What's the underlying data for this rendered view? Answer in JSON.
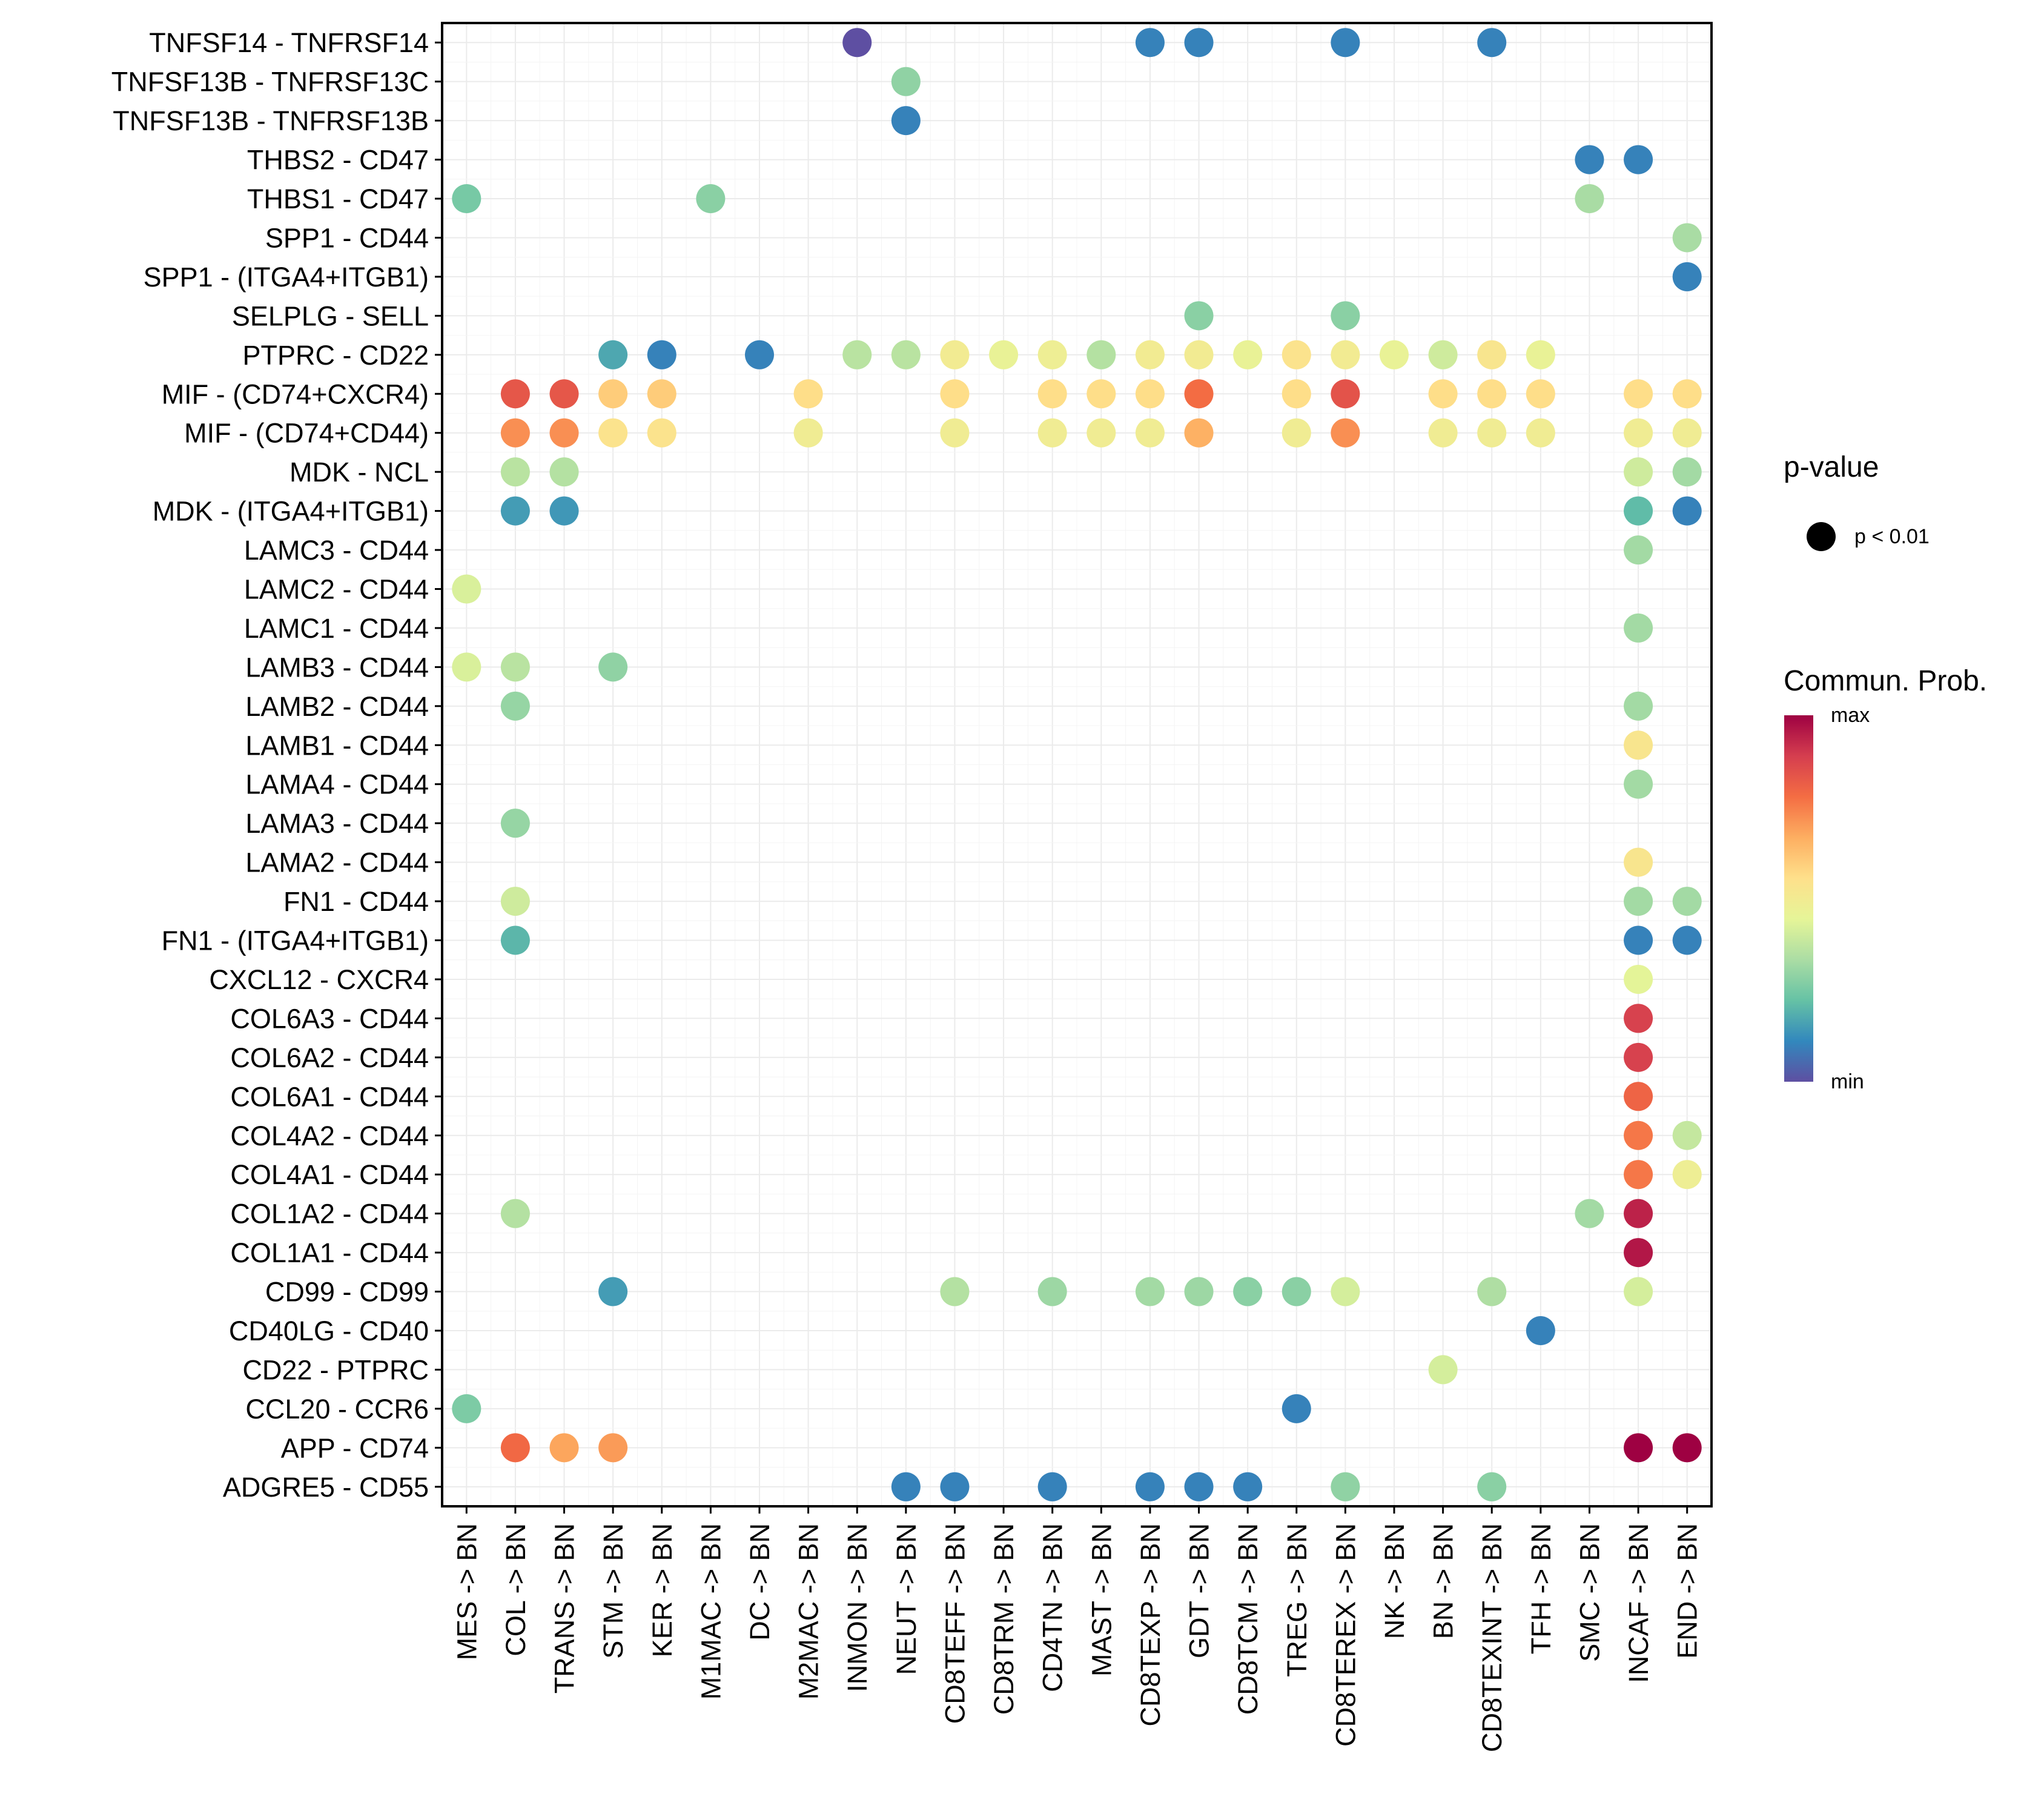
{
  "chart_data": {
    "type": "scatter",
    "subtype": "dot-plot",
    "title": "",
    "xlabel": "",
    "ylabel": "",
    "grid": true,
    "columns": [
      "MES -> BN",
      "COL -> BN",
      "TRANS -> BN",
      "STM -> BN",
      "KER -> BN",
      "M1MAC -> BN",
      "DC -> BN",
      "M2MAC -> BN",
      "INMON -> BN",
      "NEUT -> BN",
      "CD8TEFF -> BN",
      "CD8TRM -> BN",
      "CD4TN -> BN",
      "MAST -> BN",
      "CD8TEXP -> BN",
      "GDT -> BN",
      "CD8TCM -> BN",
      "TREG -> BN",
      "CD8TEREX -> BN",
      "NK -> BN",
      "BN -> BN",
      "CD8TEXINT -> BN",
      "TFH -> BN",
      "SMC -> BN",
      "INCAF -> BN",
      "END -> BN"
    ],
    "rows": [
      "TNFSF14 - TNFRSF14",
      "TNFSF13B - TNFRSF13C",
      "TNFSF13B - TNFRSF13B",
      "THBS2 - CD47",
      "THBS1 - CD47",
      "SPP1 - CD44",
      "SPP1 - (ITGA4+ITGB1)",
      "SELPLG - SELL",
      "PTPRC - CD22",
      "MIF - (CD74+CXCR4)",
      "MIF - (CD74+CD44)",
      "MDK - NCL",
      "MDK - (ITGA4+ITGB1)",
      "LAMC3 - CD44",
      "LAMC2 - CD44",
      "LAMC1 - CD44",
      "LAMB3 - CD44",
      "LAMB2 - CD44",
      "LAMB1 - CD44",
      "LAMA4 - CD44",
      "LAMA3 - CD44",
      "LAMA2 - CD44",
      "FN1 - CD44",
      "FN1 - (ITGA4+ITGB1)",
      "CXCL12 - CXCR4",
      "COL6A3 - CD44",
      "COL6A2 - CD44",
      "COL6A1 - CD44",
      "COL4A2 - CD44",
      "COL4A1 - CD44",
      "COL1A2 - CD44",
      "COL1A1 - CD44",
      "CD99 - CD99",
      "CD40LG - CD40",
      "CD22 - PTPRC",
      "CCL20 - CCR6",
      "APP - CD74",
      "ADGRE5 - CD55"
    ],
    "value_scale": "relative communication probability, 0 = min, 1 = max",
    "points": [
      {
        "row": "TNFSF14 - TNFRSF14",
        "col": "INMON -> BN",
        "value": 0.0
      },
      {
        "row": "TNFSF14 - TNFRSF14",
        "col": "CD8TEXP -> BN",
        "value": 0.1
      },
      {
        "row": "TNFSF14 - TNFRSF14",
        "col": "GDT -> BN",
        "value": 0.1
      },
      {
        "row": "TNFSF14 - TNFRSF14",
        "col": "CD8TEREX -> BN",
        "value": 0.1
      },
      {
        "row": "TNFSF14 - TNFRSF14",
        "col": "CD8TEXINT -> BN",
        "value": 0.1
      },
      {
        "row": "TNFSF13B - TNFRSF13C",
        "col": "NEUT -> BN",
        "value": 0.29
      },
      {
        "row": "TNFSF13B - TNFRSF13B",
        "col": "NEUT -> BN",
        "value": 0.1
      },
      {
        "row": "THBS2 - CD47",
        "col": "SMC -> BN",
        "value": 0.1
      },
      {
        "row": "THBS2 - CD47",
        "col": "INCAF -> BN",
        "value": 0.1
      },
      {
        "row": "THBS1 - CD47",
        "col": "MES -> BN",
        "value": 0.25
      },
      {
        "row": "THBS1 - CD47",
        "col": "M1MAC -> BN",
        "value": 0.28
      },
      {
        "row": "THBS1 - CD47",
        "col": "SMC -> BN",
        "value": 0.33
      },
      {
        "row": "SPP1 - CD44",
        "col": "END -> BN",
        "value": 0.33
      },
      {
        "row": "SPP1 - (ITGA4+ITGB1)",
        "col": "END -> BN",
        "value": 0.1
      },
      {
        "row": "SELPLG - SELL",
        "col": "GDT -> BN",
        "value": 0.28
      },
      {
        "row": "SELPLG - SELL",
        "col": "CD8TEREX -> BN",
        "value": 0.28
      },
      {
        "row": "PTPRC - CD22",
        "col": "STM -> BN",
        "value": 0.17
      },
      {
        "row": "PTPRC - CD22",
        "col": "KER -> BN",
        "value": 0.1
      },
      {
        "row": "PTPRC - CD22",
        "col": "DC -> BN",
        "value": 0.1
      },
      {
        "row": "PTPRC - CD22",
        "col": "INMON -> BN",
        "value": 0.36
      },
      {
        "row": "PTPRC - CD22",
        "col": "NEUT -> BN",
        "value": 0.36
      },
      {
        "row": "PTPRC - CD22",
        "col": "CD8TEFF -> BN",
        "value": 0.5
      },
      {
        "row": "PTPRC - CD22",
        "col": "CD8TRM -> BN",
        "value": 0.46
      },
      {
        "row": "PTPRC - CD22",
        "col": "CD4TN -> BN",
        "value": 0.48
      },
      {
        "row": "PTPRC - CD22",
        "col": "MAST -> BN",
        "value": 0.35
      },
      {
        "row": "PTPRC - CD22",
        "col": "CD8TEXP -> BN",
        "value": 0.5
      },
      {
        "row": "PTPRC - CD22",
        "col": "GDT -> BN",
        "value": 0.5
      },
      {
        "row": "PTPRC - CD22",
        "col": "CD8TCM -> BN",
        "value": 0.46
      },
      {
        "row": "PTPRC - CD22",
        "col": "TREG -> BN",
        "value": 0.54
      },
      {
        "row": "PTPRC - CD22",
        "col": "CD8TEREX -> BN",
        "value": 0.5
      },
      {
        "row": "PTPRC - CD22",
        "col": "NK -> BN",
        "value": 0.46
      },
      {
        "row": "PTPRC - CD22",
        "col": "BN -> BN",
        "value": 0.4
      },
      {
        "row": "PTPRC - CD22",
        "col": "CD8TEXINT -> BN",
        "value": 0.53
      },
      {
        "row": "PTPRC - CD22",
        "col": "TFH -> BN",
        "value": 0.46
      },
      {
        "row": "MIF - (CD74+CXCR4)",
        "col": "COL -> BN",
        "value": 0.83
      },
      {
        "row": "MIF - (CD74+CXCR4)",
        "col": "TRANS -> BN",
        "value": 0.83
      },
      {
        "row": "MIF - (CD74+CXCR4)",
        "col": "STM -> BN",
        "value": 0.6
      },
      {
        "row": "MIF - (CD74+CXCR4)",
        "col": "KER -> BN",
        "value": 0.6
      },
      {
        "row": "MIF - (CD74+CXCR4)",
        "col": "M2MAC -> BN",
        "value": 0.56
      },
      {
        "row": "MIF - (CD74+CXCR4)",
        "col": "CD8TEFF -> BN",
        "value": 0.56
      },
      {
        "row": "MIF - (CD74+CXCR4)",
        "col": "CD4TN -> BN",
        "value": 0.56
      },
      {
        "row": "MIF - (CD74+CXCR4)",
        "col": "MAST -> BN",
        "value": 0.56
      },
      {
        "row": "MIF - (CD74+CXCR4)",
        "col": "CD8TEXP -> BN",
        "value": 0.56
      },
      {
        "row": "MIF - (CD74+CXCR4)",
        "col": "GDT -> BN",
        "value": 0.78
      },
      {
        "row": "MIF - (CD74+CXCR4)",
        "col": "TREG -> BN",
        "value": 0.56
      },
      {
        "row": "MIF - (CD74+CXCR4)",
        "col": "CD8TEREX -> BN",
        "value": 0.84
      },
      {
        "row": "MIF - (CD74+CXCR4)",
        "col": "BN -> BN",
        "value": 0.56
      },
      {
        "row": "MIF - (CD74+CXCR4)",
        "col": "CD8TEXINT -> BN",
        "value": 0.56
      },
      {
        "row": "MIF - (CD74+CXCR4)",
        "col": "TFH -> BN",
        "value": 0.56
      },
      {
        "row": "MIF - (CD74+CXCR4)",
        "col": "INCAF -> BN",
        "value": 0.56
      },
      {
        "row": "MIF - (CD74+CXCR4)",
        "col": "END -> BN",
        "value": 0.56
      },
      {
        "row": "MIF - (CD74+CD44)",
        "col": "COL -> BN",
        "value": 0.72
      },
      {
        "row": "MIF - (CD74+CD44)",
        "col": "TRANS -> BN",
        "value": 0.72
      },
      {
        "row": "MIF - (CD74+CD44)",
        "col": "STM -> BN",
        "value": 0.54
      },
      {
        "row": "MIF - (CD74+CD44)",
        "col": "KER -> BN",
        "value": 0.54
      },
      {
        "row": "MIF - (CD74+CD44)",
        "col": "M2MAC -> BN",
        "value": 0.49
      },
      {
        "row": "MIF - (CD74+CD44)",
        "col": "CD8TEFF -> BN",
        "value": 0.49
      },
      {
        "row": "MIF - (CD74+CD44)",
        "col": "CD4TN -> BN",
        "value": 0.49
      },
      {
        "row": "MIF - (CD74+CD44)",
        "col": "MAST -> BN",
        "value": 0.49
      },
      {
        "row": "MIF - (CD74+CD44)",
        "col": "CD8TEXP -> BN",
        "value": 0.49
      },
      {
        "row": "MIF - (CD74+CD44)",
        "col": "GDT -> BN",
        "value": 0.66
      },
      {
        "row": "MIF - (CD74+CD44)",
        "col": "TREG -> BN",
        "value": 0.49
      },
      {
        "row": "MIF - (CD74+CD44)",
        "col": "CD8TEREX -> BN",
        "value": 0.72
      },
      {
        "row": "MIF - (CD74+CD44)",
        "col": "BN -> BN",
        "value": 0.49
      },
      {
        "row": "MIF - (CD74+CD44)",
        "col": "CD8TEXINT -> BN",
        "value": 0.49
      },
      {
        "row": "MIF - (CD74+CD44)",
        "col": "TFH -> BN",
        "value": 0.49
      },
      {
        "row": "MIF - (CD74+CD44)",
        "col": "INCAF -> BN",
        "value": 0.49
      },
      {
        "row": "MIF - (CD74+CD44)",
        "col": "END -> BN",
        "value": 0.49
      },
      {
        "row": "MDK - NCL",
        "col": "COL -> BN",
        "value": 0.36
      },
      {
        "row": "MDK - NCL",
        "col": "TRANS -> BN",
        "value": 0.35
      },
      {
        "row": "MDK - NCL",
        "col": "INCAF -> BN",
        "value": 0.4
      },
      {
        "row": "MDK - NCL",
        "col": "END -> BN",
        "value": 0.32
      },
      {
        "row": "MDK - (ITGA4+ITGB1)",
        "col": "COL -> BN",
        "value": 0.15
      },
      {
        "row": "MDK - (ITGA4+ITGB1)",
        "col": "TRANS -> BN",
        "value": 0.14
      },
      {
        "row": "MDK - (ITGA4+ITGB1)",
        "col": "INCAF -> BN",
        "value": 0.21
      },
      {
        "row": "MDK - (ITGA4+ITGB1)",
        "col": "END -> BN",
        "value": 0.1
      },
      {
        "row": "LAMC3 - CD44",
        "col": "INCAF -> BN",
        "value": 0.32
      },
      {
        "row": "LAMC2 - CD44",
        "col": "MES -> BN",
        "value": 0.42
      },
      {
        "row": "LAMC1 - CD44",
        "col": "INCAF -> BN",
        "value": 0.32
      },
      {
        "row": "LAMB3 - CD44",
        "col": "MES -> BN",
        "value": 0.42
      },
      {
        "row": "LAMB3 - CD44",
        "col": "COL -> BN",
        "value": 0.36
      },
      {
        "row": "LAMB3 - CD44",
        "col": "STM -> BN",
        "value": 0.29
      },
      {
        "row": "LAMB2 - CD44",
        "col": "COL -> BN",
        "value": 0.3
      },
      {
        "row": "LAMB2 - CD44",
        "col": "INCAF -> BN",
        "value": 0.32
      },
      {
        "row": "LAMB1 - CD44",
        "col": "INCAF -> BN",
        "value": 0.53
      },
      {
        "row": "LAMA4 - CD44",
        "col": "INCAF -> BN",
        "value": 0.32
      },
      {
        "row": "LAMA3 - CD44",
        "col": "COL -> BN",
        "value": 0.3
      },
      {
        "row": "LAMA2 - CD44",
        "col": "INCAF -> BN",
        "value": 0.53
      },
      {
        "row": "FN1 - CD44",
        "col": "COL -> BN",
        "value": 0.4
      },
      {
        "row": "FN1 - CD44",
        "col": "INCAF -> BN",
        "value": 0.32
      },
      {
        "row": "FN1 - CD44",
        "col": "END -> BN",
        "value": 0.32
      },
      {
        "row": "FN1 - (ITGA4+ITGB1)",
        "col": "COL -> BN",
        "value": 0.2
      },
      {
        "row": "FN1 - (ITGA4+ITGB1)",
        "col": "INCAF -> BN",
        "value": 0.1
      },
      {
        "row": "FN1 - (ITGA4+ITGB1)",
        "col": "END -> BN",
        "value": 0.1
      },
      {
        "row": "CXCL12 - CXCR4",
        "col": "INCAF -> BN",
        "value": 0.44
      },
      {
        "row": "COL6A3 - CD44",
        "col": "INCAF -> BN",
        "value": 0.88
      },
      {
        "row": "COL6A2 - CD44",
        "col": "INCAF -> BN",
        "value": 0.88
      },
      {
        "row": "COL6A1 - CD44",
        "col": "INCAF -> BN",
        "value": 0.8
      },
      {
        "row": "COL4A2 - CD44",
        "col": "INCAF -> BN",
        "value": 0.76
      },
      {
        "row": "COL4A2 - CD44",
        "col": "END -> BN",
        "value": 0.38
      },
      {
        "row": "COL4A1 - CD44",
        "col": "INCAF -> BN",
        "value": 0.76
      },
      {
        "row": "COL4A1 - CD44",
        "col": "END -> BN",
        "value": 0.48
      },
      {
        "row": "COL1A2 - CD44",
        "col": "COL -> BN",
        "value": 0.35
      },
      {
        "row": "COL1A2 - CD44",
        "col": "SMC -> BN",
        "value": 0.32
      },
      {
        "row": "COL1A2 - CD44",
        "col": "INCAF -> BN",
        "value": 0.94
      },
      {
        "row": "COL1A1 - CD44",
        "col": "INCAF -> BN",
        "value": 0.96
      },
      {
        "row": "CD99 - CD99",
        "col": "STM -> BN",
        "value": 0.15
      },
      {
        "row": "CD99 - CD99",
        "col": "CD8TEFF -> BN",
        "value": 0.35
      },
      {
        "row": "CD99 - CD99",
        "col": "CD4TN -> BN",
        "value": 0.31
      },
      {
        "row": "CD99 - CD99",
        "col": "CD8TEXP -> BN",
        "value": 0.32
      },
      {
        "row": "CD99 - CD99",
        "col": "GDT -> BN",
        "value": 0.31
      },
      {
        "row": "CD99 - CD99",
        "col": "CD8TCM -> BN",
        "value": 0.28
      },
      {
        "row": "CD99 - CD99",
        "col": "TREG -> BN",
        "value": 0.28
      },
      {
        "row": "CD99 - CD99",
        "col": "CD8TEREX -> BN",
        "value": 0.41
      },
      {
        "row": "CD99 - CD99",
        "col": "CD8TEXINT -> BN",
        "value": 0.34
      },
      {
        "row": "CD99 - CD99",
        "col": "INCAF -> BN",
        "value": 0.41
      },
      {
        "row": "CD40LG - CD40",
        "col": "TFH -> BN",
        "value": 0.1
      },
      {
        "row": "CD22 - PTPRC",
        "col": "BN -> BN",
        "value": 0.41
      },
      {
        "row": "CCL20 - CCR6",
        "col": "MES -> BN",
        "value": 0.26
      },
      {
        "row": "CCL20 - CCR6",
        "col": "TREG -> BN",
        "value": 0.1
      },
      {
        "row": "APP - CD74",
        "col": "COL -> BN",
        "value": 0.79
      },
      {
        "row": "APP - CD74",
        "col": "TRANS -> BN",
        "value": 0.68
      },
      {
        "row": "APP - CD74",
        "col": "STM -> BN",
        "value": 0.7
      },
      {
        "row": "APP - CD74",
        "col": "INCAF -> BN",
        "value": 1.0
      },
      {
        "row": "APP - CD74",
        "col": "END -> BN",
        "value": 1.0
      },
      {
        "row": "ADGRE5 - CD55",
        "col": "NEUT -> BN",
        "value": 0.1
      },
      {
        "row": "ADGRE5 - CD55",
        "col": "CD8TEFF -> BN",
        "value": 0.1
      },
      {
        "row": "ADGRE5 - CD55",
        "col": "CD4TN -> BN",
        "value": 0.1
      },
      {
        "row": "ADGRE5 - CD55",
        "col": "CD8TEXP -> BN",
        "value": 0.1
      },
      {
        "row": "ADGRE5 - CD55",
        "col": "GDT -> BN",
        "value": 0.1
      },
      {
        "row": "ADGRE5 - CD55",
        "col": "CD8TCM -> BN",
        "value": 0.1
      },
      {
        "row": "ADGRE5 - CD55",
        "col": "CD8TEREX -> BN",
        "value": 0.29
      },
      {
        "row": "ADGRE5 - CD55",
        "col": "CD8TEXINT -> BN",
        "value": 0.28
      }
    ],
    "legend": {
      "placement": "right",
      "pvalue_title": "p-value",
      "pvalue_label": "p < 0.01",
      "color_title": "Commun. Prob.",
      "color_max_label": "max",
      "color_min_label": "min",
      "palette": [
        "#5E4FA2",
        "#3288BD",
        "#66C2A5",
        "#ABDDA4",
        "#E6F598",
        "#FEE08B",
        "#FDAE61",
        "#F46D43",
        "#D53E4F",
        "#9E0142"
      ]
    }
  }
}
